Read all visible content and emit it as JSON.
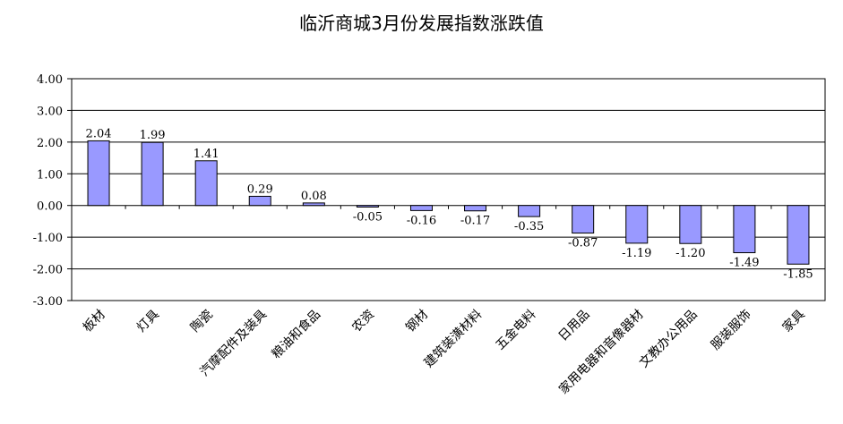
{
  "chart_data": {
    "type": "bar",
    "title": "临沂商城3月份发展指数涨跌值",
    "xlabel": "",
    "ylabel": "",
    "ylim": [
      -3,
      4
    ],
    "yticks": [
      "4.00",
      "3.00",
      "2.00",
      "1.00",
      "0.00",
      "-1.00",
      "-2.00",
      "-3.00"
    ],
    "grid": true,
    "legend": "none",
    "bar_color": "#9999ff",
    "categories": [
      "板材",
      "灯具",
      "陶瓷",
      "汽摩配件及装具",
      "粮油和食品",
      "农资",
      "钢材",
      "建筑装潢材料",
      "五金电料",
      "日用品",
      "家用电器和音像器材",
      "文教办公用品",
      "服装服饰",
      "家具"
    ],
    "values": [
      2.04,
      1.99,
      1.41,
      0.29,
      0.08,
      -0.05,
      -0.16,
      -0.17,
      -0.35,
      -0.87,
      -1.19,
      -1.2,
      -1.49,
      -1.85
    ],
    "value_labels": [
      "2.04",
      "1.99",
      "1.41",
      "0.29",
      "0.08",
      "-0.05",
      "-0.16",
      "-0.17",
      "-0.35",
      "-0.87",
      "-1.19",
      "-1.20",
      "-1.49",
      "-1.85"
    ]
  }
}
